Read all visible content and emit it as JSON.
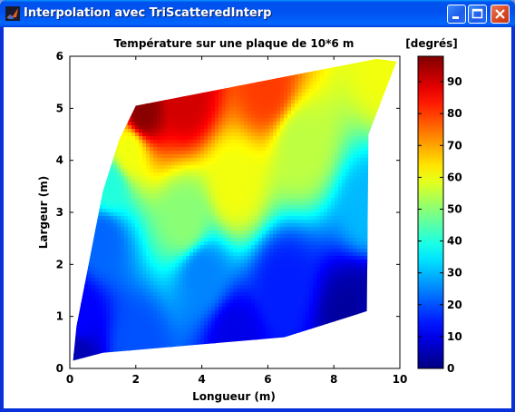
{
  "window": {
    "title": "Interpolation avec TriScatteredInterp",
    "app_icon": "matlab-icon",
    "buttons": [
      "minimize-icon",
      "maximize-icon",
      "close-icon"
    ]
  },
  "chart_data": {
    "type": "heatmap",
    "title": "Température sur une plaque de 10*6 m",
    "xlabel": "Longueur (m)",
    "ylabel": "Largeur (m)",
    "xlim": [
      0,
      10
    ],
    "ylim": [
      0,
      6
    ],
    "xticks": [
      "0",
      "2",
      "4",
      "6",
      "8",
      "10"
    ],
    "yticks": [
      "0",
      "1",
      "2",
      "3",
      "4",
      "5",
      "6"
    ],
    "colormap": "jet",
    "colorbar": {
      "label": "[degrés]",
      "range": [
        0,
        98
      ],
      "ticks": [
        "0",
        "10",
        "20",
        "30",
        "40",
        "50",
        "60",
        "70",
        "80",
        "90"
      ]
    },
    "region_polygon": [
      [
        0.1,
        0.15
      ],
      [
        1.0,
        0.3
      ],
      [
        6.5,
        0.6
      ],
      [
        8.5,
        1.0
      ],
      [
        9.0,
        1.1
      ],
      [
        9.05,
        4.5
      ],
      [
        9.9,
        5.9
      ],
      [
        9.3,
        5.95
      ],
      [
        2.0,
        5.05
      ],
      [
        1.5,
        4.4
      ],
      [
        1.0,
        3.4
      ],
      [
        0.2,
        0.8
      ],
      [
        0.1,
        0.15
      ]
    ],
    "sample_values": [
      {
        "x": 2.2,
        "y": 4.9,
        "value": 97
      },
      {
        "x": 3.5,
        "y": 5.2,
        "value": 90
      },
      {
        "x": 6.0,
        "y": 5.4,
        "value": 80
      },
      {
        "x": 9.6,
        "y": 5.8,
        "value": 60
      },
      {
        "x": 9.1,
        "y": 3.0,
        "value": 30
      },
      {
        "x": 9.0,
        "y": 1.2,
        "value": 4
      },
      {
        "x": 8.5,
        "y": 1.0,
        "value": 3
      },
      {
        "x": 5.0,
        "y": 0.6,
        "value": 10
      },
      {
        "x": 2.0,
        "y": 0.4,
        "value": 20
      },
      {
        "x": 0.2,
        "y": 0.2,
        "value": 5
      },
      {
        "x": 0.3,
        "y": 1.0,
        "value": 12
      },
      {
        "x": 1.0,
        "y": 2.5,
        "value": 22
      },
      {
        "x": 1.2,
        "y": 3.5,
        "value": 40
      },
      {
        "x": 1.8,
        "y": 4.2,
        "value": 60
      },
      {
        "x": 3.5,
        "y": 2.8,
        "value": 50
      },
      {
        "x": 5.0,
        "y": 3.5,
        "value": 60
      },
      {
        "x": 7.0,
        "y": 4.3,
        "value": 55
      },
      {
        "x": 6.5,
        "y": 1.6,
        "value": 15
      },
      {
        "x": 4.0,
        "y": 1.8,
        "value": 25
      }
    ]
  }
}
